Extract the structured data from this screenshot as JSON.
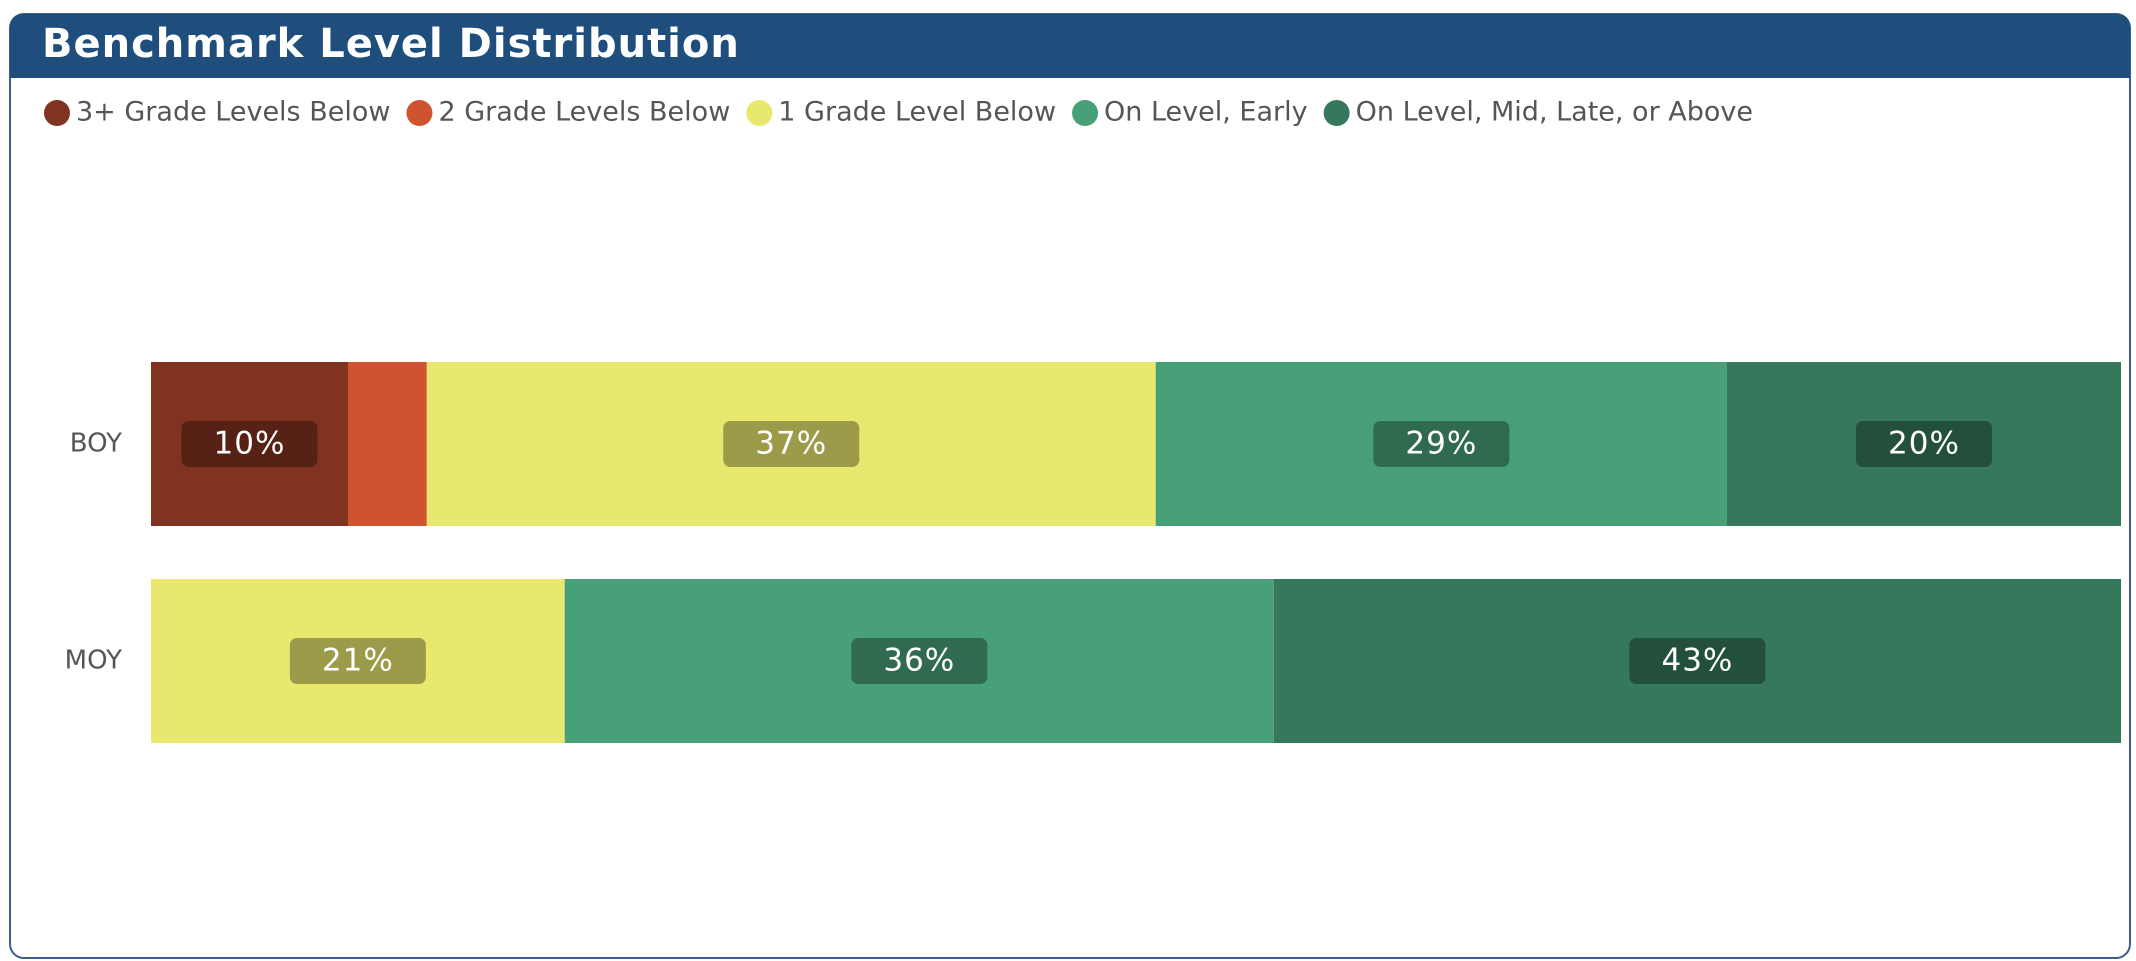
{
  "chart_data": {
    "type": "stacked-bar-horizontal",
    "title": "Benchmark Level Distribution",
    "categories": [
      "BOY",
      "MOY"
    ],
    "xlim": [
      0,
      100
    ],
    "legend": "top-left",
    "series": [
      {
        "name": "3+ Grade Levels Below",
        "color": "#7f3320",
        "values": [
          10,
          0
        ],
        "value_labels": [
          "10%",
          null
        ]
      },
      {
        "name": "2 Grade Levels Below",
        "color": "#d0532f",
        "values": [
          4,
          0
        ],
        "value_labels": [
          null,
          null
        ]
      },
      {
        "name": "1 Grade Level Below",
        "color": "#e8e86f",
        "values": [
          37,
          21
        ],
        "value_labels": [
          "37%",
          "21%"
        ]
      },
      {
        "name": "On Level, Early",
        "color": "#48a078",
        "values": [
          29,
          36
        ],
        "value_labels": [
          "29%",
          "36%"
        ]
      },
      {
        "name": "On Level, Mid, Late, or Above",
        "color": "#35785c",
        "values": [
          20,
          43
        ],
        "value_labels": [
          "20%",
          "43%"
        ]
      }
    ]
  }
}
